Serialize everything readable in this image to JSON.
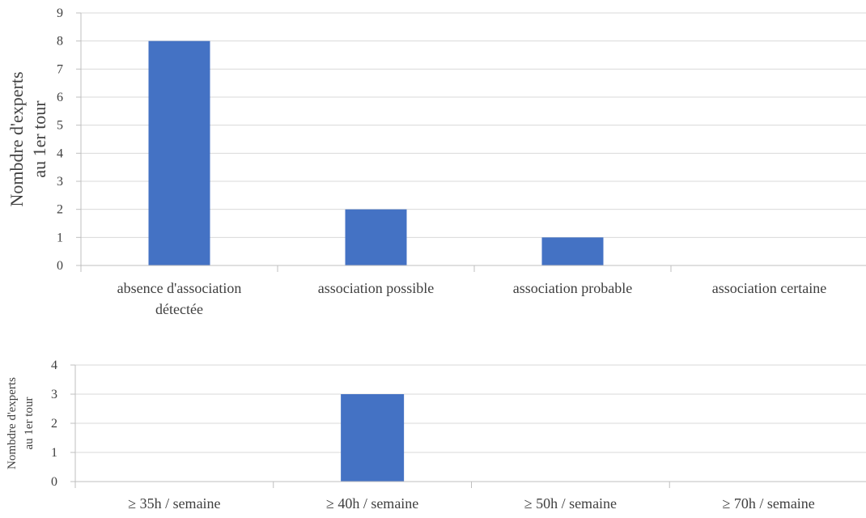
{
  "chart_data": [
    {
      "type": "bar",
      "categories": [
        [
          "absence d'association",
          "détectée"
        ],
        [
          "association possible"
        ],
        [
          "association probable"
        ],
        [
          "association certaine"
        ]
      ],
      "values": [
        8,
        2,
        1,
        0
      ],
      "ylabel": [
        "Nombdre d'experts",
        "au 1er tour"
      ],
      "ylim": [
        0,
        9
      ],
      "yticks": [
        0,
        1,
        2,
        3,
        4,
        5,
        6,
        7,
        8,
        9
      ],
      "grid": true,
      "bar_color": "#4472C4"
    },
    {
      "type": "bar",
      "categories": [
        [
          "≥ 35h / semaine"
        ],
        [
          "≥ 40h / semaine"
        ],
        [
          "≥ 50h / semaine"
        ],
        [
          "≥ 70h / semaine"
        ]
      ],
      "values": [
        0,
        3,
        0,
        0
      ],
      "ylabel": [
        "Nombdre d'experts",
        "au 1er tour"
      ],
      "ylim": [
        0,
        4
      ],
      "yticks": [
        0,
        1,
        2,
        3,
        4
      ],
      "grid": true,
      "bar_color": "#4472C4"
    }
  ]
}
